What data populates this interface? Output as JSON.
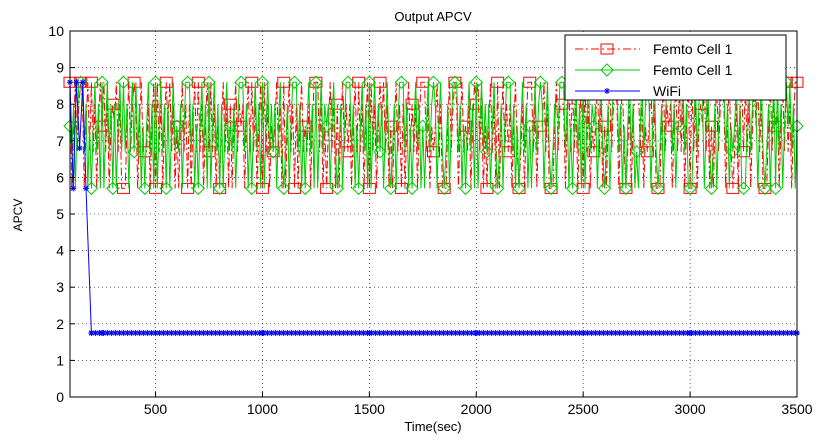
{
  "chart_data": {
    "type": "line",
    "title": "Output APCV",
    "xlabel": "Time(sec)",
    "ylabel": "APCV",
    "xlim": [
      100,
      3500
    ],
    "ylim": [
      0,
      10
    ],
    "xticks": [
      500,
      1000,
      1500,
      2000,
      2500,
      3000,
      3500
    ],
    "yticks": [
      0,
      1,
      2,
      3,
      4,
      5,
      6,
      7,
      8,
      9,
      10
    ],
    "grid": true,
    "legend_position": "top-right",
    "series": [
      {
        "name": "Femto Cell 1",
        "color": "#ff0000",
        "line_style": "dash-dot",
        "marker": "square",
        "levels": [
          5.7,
          6.7,
          7.4,
          8.0,
          8.6
        ],
        "x": [
          100,
          150,
          200,
          250,
          300,
          350,
          400,
          450,
          500,
          550,
          600,
          650,
          700,
          750,
          800,
          850,
          900,
          950,
          1000,
          1050,
          1100,
          1150,
          1200,
          1250,
          1300,
          1350,
          1400,
          1450,
          1500,
          1550,
          1600,
          1650,
          1700,
          1750,
          1800,
          1850,
          1900,
          1950,
          2000,
          2050,
          2100,
          2150,
          2200,
          2250,
          2300,
          2350,
          2400,
          2450,
          2500,
          2550,
          2600,
          2650,
          2700,
          2750,
          2800,
          2850,
          2900,
          2950,
          3000,
          3050,
          3100,
          3150,
          3200,
          3250,
          3300,
          3350,
          3400,
          3450,
          3500
        ],
        "y": [
          8.6,
          8.6,
          8.6,
          7.4,
          8.0,
          5.7,
          8.6,
          6.7,
          5.7,
          8.6,
          7.4,
          5.7,
          8.6,
          6.7,
          5.7,
          8.0,
          7.4,
          8.6,
          5.7,
          6.7,
          8.6,
          5.7,
          7.4,
          8.6,
          5.7,
          8.0,
          6.7,
          8.6,
          5.7,
          8.6,
          7.4,
          5.7,
          8.0,
          8.6,
          6.7,
          5.7,
          8.6,
          7.4,
          8.0,
          5.7,
          8.6,
          6.7,
          5.7,
          8.6,
          7.4,
          5.7,
          8.0,
          8.6,
          5.7,
          6.7,
          7.4,
          8.6,
          5.7,
          8.6,
          6.7,
          5.7,
          7.4,
          8.6,
          5.7,
          8.0,
          7.4,
          8.6,
          5.7,
          6.7,
          8.6,
          5.7,
          7.4,
          8.6,
          8.6
        ]
      },
      {
        "name": "Femto Cell 1",
        "color": "#00cc00",
        "line_style": "solid",
        "marker": "diamond",
        "levels": [
          5.7,
          6.7,
          7.4,
          8.0,
          8.6
        ],
        "x": [
          100,
          150,
          200,
          250,
          300,
          350,
          400,
          450,
          500,
          550,
          600,
          650,
          700,
          750,
          800,
          850,
          900,
          950,
          1000,
          1050,
          1100,
          1150,
          1200,
          1250,
          1300,
          1350,
          1400,
          1450,
          1500,
          1550,
          1600,
          1650,
          1700,
          1750,
          1800,
          1850,
          1900,
          1950,
          2000,
          2050,
          2100,
          2150,
          2200,
          2250,
          2300,
          2350,
          2400,
          2450,
          2500,
          2550,
          2600,
          2650,
          2700,
          2750,
          2800,
          2850,
          2900,
          2950,
          3000,
          3050,
          3100,
          3150,
          3200,
          3250,
          3300,
          3350,
          3400,
          3450,
          3500
        ],
        "y": [
          7.4,
          8.6,
          5.7,
          8.6,
          5.7,
          8.6,
          6.7,
          5.7,
          8.6,
          5.7,
          7.4,
          8.6,
          5.7,
          8.6,
          5.7,
          7.4,
          8.6,
          5.7,
          8.6,
          6.7,
          5.7,
          8.6,
          5.7,
          8.6,
          7.4,
          5.7,
          8.6,
          5.7,
          8.6,
          6.7,
          5.7,
          8.6,
          5.7,
          7.4,
          8.6,
          5.7,
          8.6,
          5.7,
          8.6,
          6.7,
          5.7,
          8.6,
          5.7,
          7.4,
          8.6,
          5.7,
          8.6,
          5.7,
          8.6,
          7.4,
          5.7,
          8.6,
          5.7,
          6.7,
          8.6,
          5.7,
          8.6,
          7.4,
          5.7,
          8.6,
          5.7,
          8.6,
          6.7,
          5.7,
          8.6,
          5.7,
          5.7,
          8.6,
          7.4
        ]
      },
      {
        "name": "WiFi",
        "color": "#0000ff",
        "line_style": "solid",
        "marker": "asterisk",
        "x": [
          100,
          115,
          130,
          145,
          160,
          175,
          200,
          250,
          500,
          1000,
          1500,
          2000,
          2500,
          3000,
          3500
        ],
        "y": [
          8.6,
          5.7,
          8.6,
          6.8,
          8.6,
          5.7,
          1.75,
          1.75,
          1.75,
          1.75,
          1.75,
          1.75,
          1.75,
          1.75,
          1.75
        ]
      }
    ]
  }
}
